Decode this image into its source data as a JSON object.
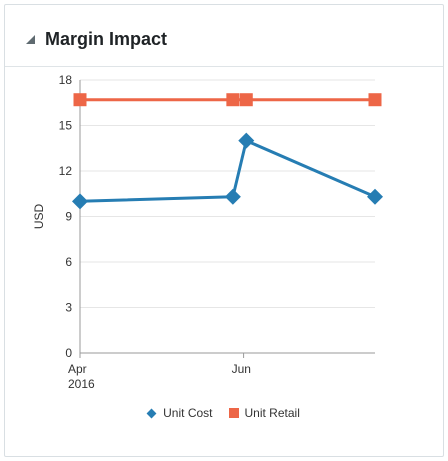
{
  "panel": {
    "title": "Margin Impact"
  },
  "colors": {
    "unit_cost": "#267db3",
    "unit_retail": "#ed6647",
    "grid": "#e6e6e6",
    "axis": "#9a9a9a"
  },
  "chart_data": {
    "type": "line",
    "xlabel": "",
    "ylabel": "USD",
    "ylim": [
      0,
      18
    ],
    "yticks": [
      0,
      3,
      6,
      9,
      12,
      15,
      18
    ],
    "xlim": [
      "2016-04-01",
      "2016-07-20"
    ],
    "xticks": [
      {
        "date": "2016-04-01",
        "label": "Apr",
        "sublabel": "2016"
      },
      {
        "date": "2016-06-01",
        "label": "Jun",
        "sublabel": ""
      }
    ],
    "legend_position": "bottom",
    "grid": true,
    "series": [
      {
        "name": "Unit Cost",
        "marker": "diamond",
        "points": [
          {
            "x": "2016-04-01",
            "y": 10.0
          },
          {
            "x": "2016-05-28",
            "y": 10.3
          },
          {
            "x": "2016-06-02",
            "y": 14.0
          },
          {
            "x": "2016-07-20",
            "y": 10.3
          }
        ]
      },
      {
        "name": "Unit Retail",
        "marker": "square",
        "points": [
          {
            "x": "2016-04-01",
            "y": 16.7
          },
          {
            "x": "2016-05-28",
            "y": 16.7
          },
          {
            "x": "2016-06-02",
            "y": 16.7
          },
          {
            "x": "2016-07-20",
            "y": 16.7
          }
        ]
      }
    ]
  }
}
